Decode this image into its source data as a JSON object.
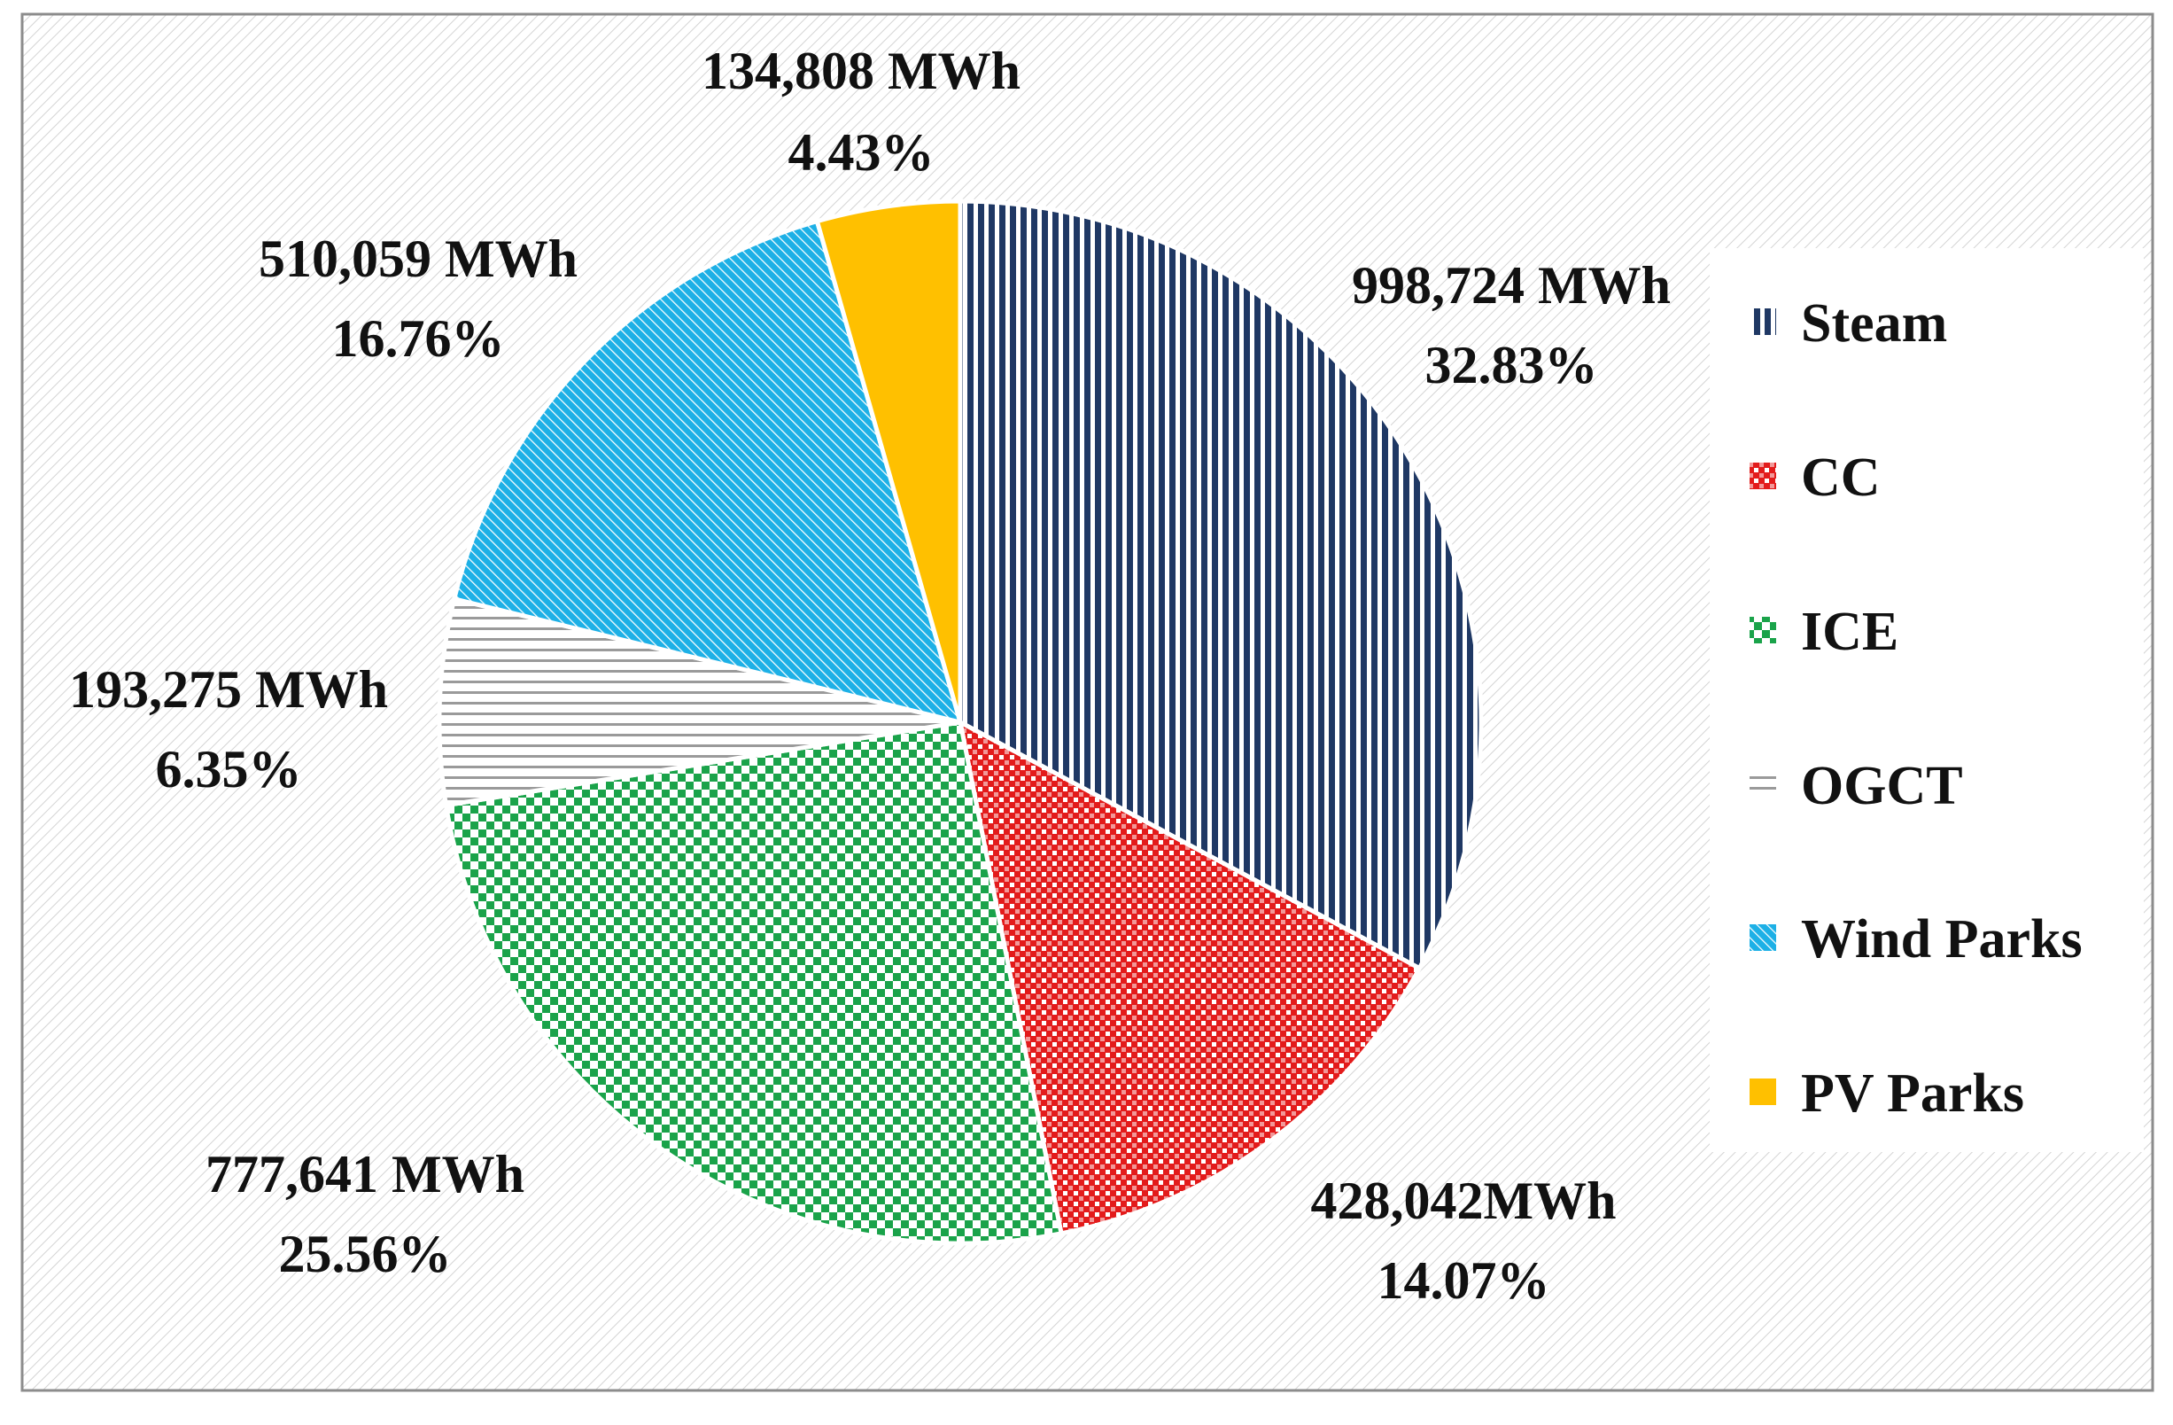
{
  "chart_data": {
    "type": "pie",
    "title": "",
    "unit": "MWh",
    "start": "12 o'clock, clockwise",
    "slices": [
      {
        "name": "Steam",
        "value": 998724,
        "value_label": "998,724 MWh",
        "percent_label": "32.83%",
        "color": "#1f3864",
        "pattern": "vertical-lines"
      },
      {
        "name": "CC",
        "value": 428042,
        "value_label": "428,042MWh",
        "percent_label": "14.07%",
        "color": "#e31b1b",
        "pattern": "cross-hatch"
      },
      {
        "name": "ICE",
        "value": 777641,
        "value_label": "777,641 MWh",
        "percent_label": "25.56%",
        "color": "#1aa34a",
        "pattern": "checker"
      },
      {
        "name": "OGCT",
        "value": 193275,
        "value_label": "193,275 MWh",
        "percent_label": "6.35%",
        "color": "#9a9a9a",
        "pattern": "horizontal-lines"
      },
      {
        "name": "Wind Parks",
        "value": 510059,
        "value_label": "510,059 MWh",
        "percent_label": "16.76%",
        "color": "#1db0e6",
        "pattern": "diagonal-lines"
      },
      {
        "name": "PV Parks",
        "value": 134808,
        "value_label": "134,808 MWh",
        "percent_label": "4.43%",
        "color": "#ffc000",
        "pattern": "solid"
      }
    ],
    "legend": {
      "position": "right",
      "entries": [
        "Steam",
        "CC",
        "ICE",
        "OGCT",
        "Wind Parks",
        "PV Parks"
      ]
    }
  }
}
